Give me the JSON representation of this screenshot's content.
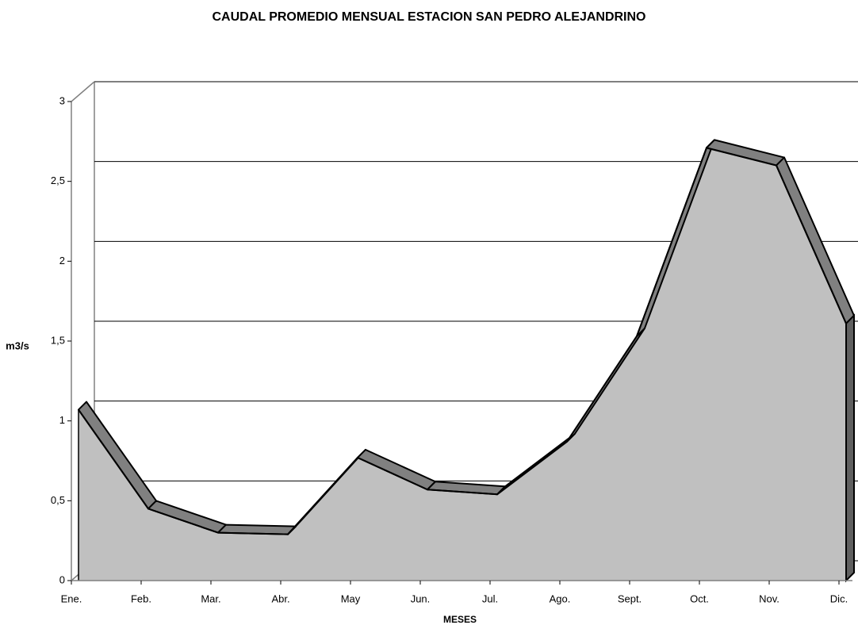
{
  "chart_data": {
    "type": "area",
    "title": "CAUDAL PROMEDIO MENSUAL ESTACION SAN PEDRO ALEJANDRINO",
    "y_label": "m3/s",
    "x_label": "MESES",
    "categories": [
      "Ene.",
      "Feb.",
      "Mar.",
      "Abr.",
      "May",
      "Jun.",
      "Jul.",
      "Ago.",
      "Sept.",
      "Oct.",
      "Nov.",
      "Dic."
    ],
    "values": [
      1.07,
      0.45,
      0.3,
      0.29,
      0.77,
      0.57,
      0.54,
      0.87,
      1.53,
      2.71,
      2.6,
      1.61
    ],
    "color": "#c0c0c0",
    "top_color": "#808080",
    "ylim": [
      0,
      3
    ],
    "yticks": [
      0,
      {
        "value": 0.5,
        "label": "0,5"
      },
      1,
      {
        "value": 1.5,
        "label": "1,5"
      },
      2,
      {
        "value": 2.5,
        "label": "2,5"
      },
      3
    ],
    "grid": true
  }
}
